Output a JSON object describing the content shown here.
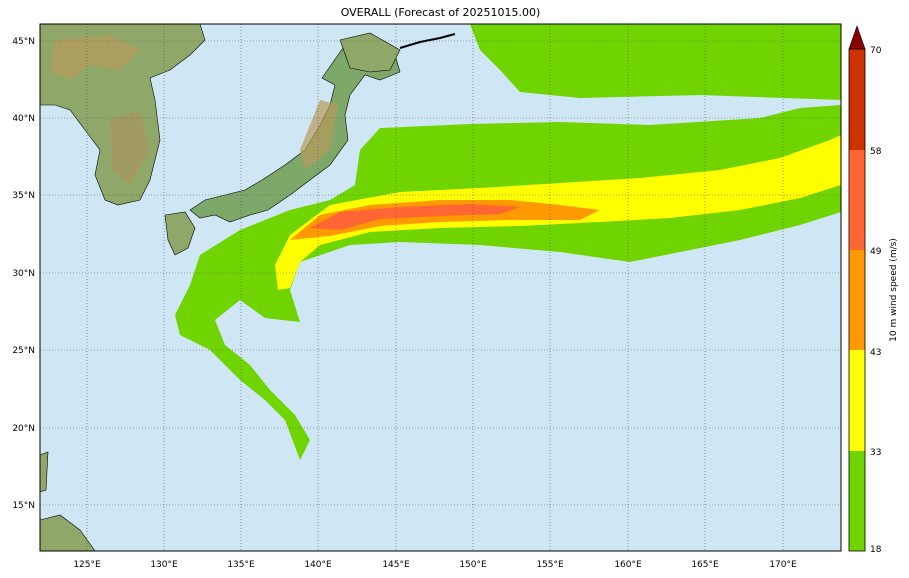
{
  "title": "OVERALL (Forecast of 20251015.00)",
  "map": {
    "lon_range": [
      122,
      174
    ],
    "lat_range": [
      12,
      46
    ],
    "ocean_color": "#cfe6f5",
    "grid": true
  },
  "lon_ticks": [
    "125°E",
    "130°E",
    "135°E",
    "140°E",
    "145°E",
    "150°E",
    "155°E",
    "160°E",
    "165°E",
    "170°E"
  ],
  "lat_ticks": [
    "15°N",
    "20°N",
    "25°N",
    "30°N",
    "35°N",
    "40°N",
    "45°N"
  ],
  "colorbar": {
    "label": "10 m wind speed (m/s)",
    "ticks": [
      "18",
      "33",
      "43",
      "49",
      "58",
      "70"
    ],
    "colors": [
      "#6fd400",
      "#ffff00",
      "#ff9900",
      "#ff6633",
      "#cc3300",
      "#8b0000"
    ]
  }
}
